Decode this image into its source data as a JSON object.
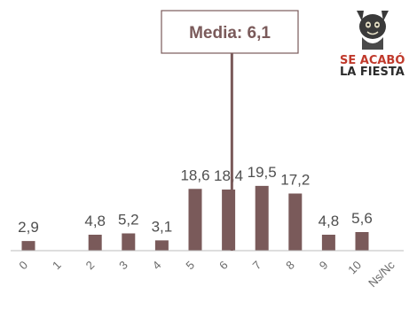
{
  "chart_data": {
    "type": "bar",
    "categories": [
      "0",
      "1",
      "2",
      "3",
      "4",
      "5",
      "6",
      "7",
      "8",
      "9",
      "10",
      "Ns/Nc"
    ],
    "values": [
      2.9,
      0,
      4.8,
      5.2,
      3.1,
      18.6,
      18.4,
      19.5,
      17.2,
      4.8,
      5.6,
      0
    ],
    "value_labels": [
      "2,9",
      "",
      "4,8",
      "5,2",
      "3,1",
      "18,6",
      "18,4",
      "19,5",
      "17,2",
      "4,8",
      "5,6",
      ""
    ],
    "mean": 6.1,
    "mean_label": "Media: 6,1",
    "bar_color": "#7a5a5a",
    "mean_color": "#7a5a5a",
    "grid": false
  },
  "logo": {
    "icon": "cat-icon",
    "line1": "SE ACABÓ",
    "line2": "LA FIESTA",
    "color_primary": "#c0392b",
    "color_secondary": "#2b2b2b"
  }
}
